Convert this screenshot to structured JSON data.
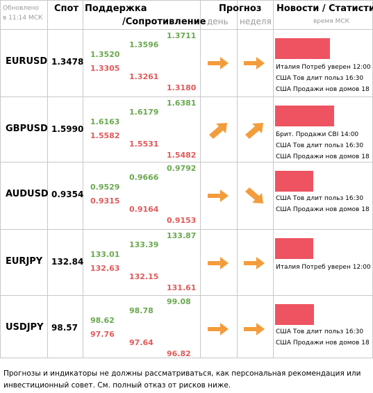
{
  "header": {
    "updated_line1": "Обновлено",
    "updated_line2": "в 11:14 МСК",
    "spot": "Спот",
    "support": "Поддержка",
    "resistance": "/Сопротивление",
    "forecast": "Прогноз",
    "day": "день",
    "week": "неделя",
    "news": "Новости / Статистика",
    "time": "время МСК"
  },
  "colors": {
    "support_green": "#6aa84f",
    "resistance_red": "#e05a5a",
    "arrow_orange": "#f39c3b",
    "news_bar": "#ee5361"
  },
  "rows": [
    {
      "pair": "EURUSD",
      "spot": "1.3478",
      "g1": "1.3520",
      "r1": "1.3305",
      "g2": "1.3596",
      "r2": "1.3261",
      "g3": "1.3711",
      "r3": "1.3180",
      "day_icon": "arrow-right-icon",
      "week_icon": "arrow-right-icon",
      "bar_fraction": 0.58,
      "news": [
        "Италия Потреб уверен 12:00",
        "США Тов длит польз 16:30",
        "США Продажи нов домов 18"
      ]
    },
    {
      "pair": "GBPUSD",
      "spot": "1.5990",
      "g1": "1.6163",
      "r1": "1.5582",
      "g2": "1.6179",
      "r2": "1.5531",
      "g3": "1.6381",
      "r3": "1.5482",
      "day_icon": "arrow-up-right-icon",
      "week_icon": "arrow-up-right-icon",
      "bar_fraction": 0.62,
      "news": [
        "Брит. Продажи CBI 14:00",
        "США Тов длит польз 16:30",
        "США Продажи нов домов 18"
      ]
    },
    {
      "pair": "AUDUSD",
      "spot": "0.9354",
      "g1": "0.9529",
      "r1": "0.9315",
      "g2": "0.9666",
      "r2": "0.9164",
      "g3": "0.9792",
      "r3": "0.9153",
      "day_icon": "arrow-right-icon",
      "week_icon": "arrow-down-right-icon",
      "bar_fraction": 0.4,
      "news": [
        "США Тов длит польз 16:30",
        "США Продажи нов домов 18"
      ]
    },
    {
      "pair": "EURJPY",
      "spot": "132.84",
      "g1": "133.01",
      "r1": "132.63",
      "g2": "133.39",
      "r2": "132.15",
      "g3": "133.87",
      "r3": "131.61",
      "day_icon": "arrow-right-icon",
      "week_icon": "arrow-right-icon",
      "bar_fraction": 0.4,
      "news": [
        "Италия Потреб уверен 12:00"
      ]
    },
    {
      "pair": "USDJPY",
      "spot": "98.57",
      "g1": "98.62",
      "r1": "97.76",
      "g2": "98.78",
      "r2": "97.64",
      "g3": "99.08",
      "r3": "96.82",
      "day_icon": "arrow-right-icon",
      "week_icon": "arrow-right-icon",
      "bar_fraction": 0.41,
      "news": [
        "США Тов длит польз 16:30",
        "США Продажи нов домов 18"
      ]
    }
  ],
  "footer": "Прогнозы и индикаторы не должны рассматриваться, как персональная рекомендация или инвестиционный совет. См. полный отказ от рисков ниже."
}
